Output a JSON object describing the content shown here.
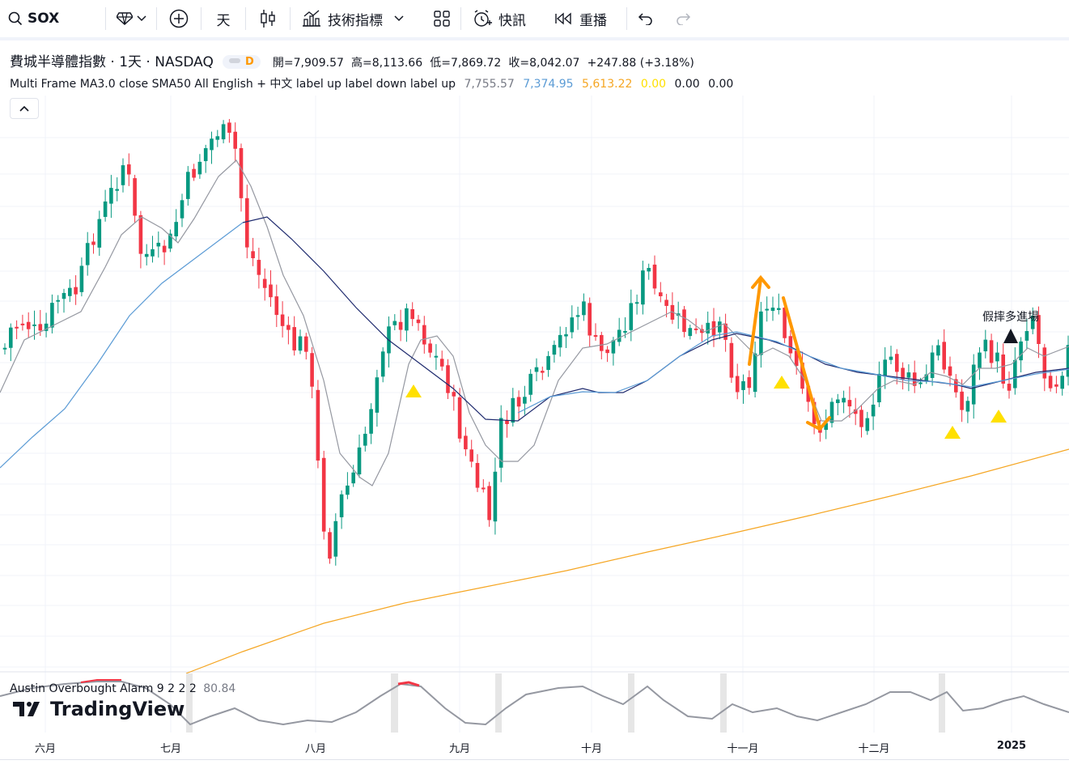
{
  "toolbar": {
    "symbol": "SOX",
    "interval": "天",
    "indicators_label": "技術指標",
    "alert_label": "快訊",
    "replay_label": "重播"
  },
  "legend": {
    "title": "費城半導體指數 · 1天 · NASDAQ",
    "badge": "D",
    "open": "開=7,909.57",
    "high": "高=8,113.66",
    "low": "低=7,869.72",
    "close": "收=8,042.07",
    "change": "+247.88 (+3.18%)"
  },
  "indicator": {
    "name": "Multi Frame MA3.0 close SMA50 All English + 中文 label up label down label up",
    "v1": "7,755.57",
    "v2": "7,374.95",
    "v3": "5,613.22",
    "v4": "0.00",
    "v5": "0.00",
    "v6": "0.00",
    "colors": {
      "v1": "#787b86",
      "v2": "#5b9bd5",
      "v3": "#f5a623",
      "v4": "#ffe000"
    }
  },
  "annotation": "假摔多進場",
  "oscillator": {
    "name": "Austin Overbought Alarm 9 2 2 2",
    "value": "80.84"
  },
  "logo": "TradingView",
  "xaxis": [
    "六月",
    "七月",
    "八月",
    "九月",
    "十月",
    "十一月",
    "十二月",
    "2025"
  ],
  "chart_data": {
    "type": "candlestick",
    "note": "daily candles, colors up=#089981 down=#f23645",
    "candles_close_relative": "illustrative series"
  }
}
